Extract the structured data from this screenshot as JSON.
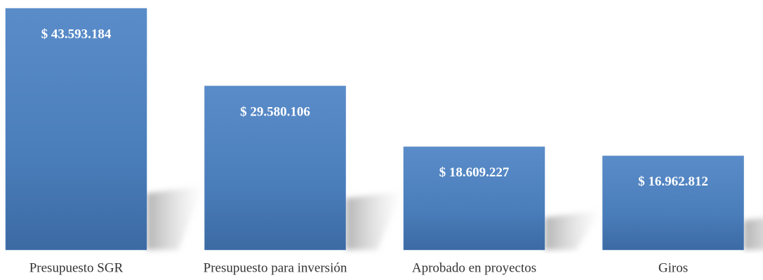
{
  "chart_data": {
    "type": "bar",
    "categories": [
      "Presupuesto SGR",
      "Presupuesto para inversión",
      "Aprobado en proyectos",
      "Giros"
    ],
    "values": [
      43593184,
      29580106,
      18609227,
      16962812
    ],
    "value_labels": [
      "$ 43.593.184",
      "$ 29.580.106",
      "$ 18.609.227",
      "$ 16.962.812"
    ],
    "color": "#4a7ebb"
  }
}
